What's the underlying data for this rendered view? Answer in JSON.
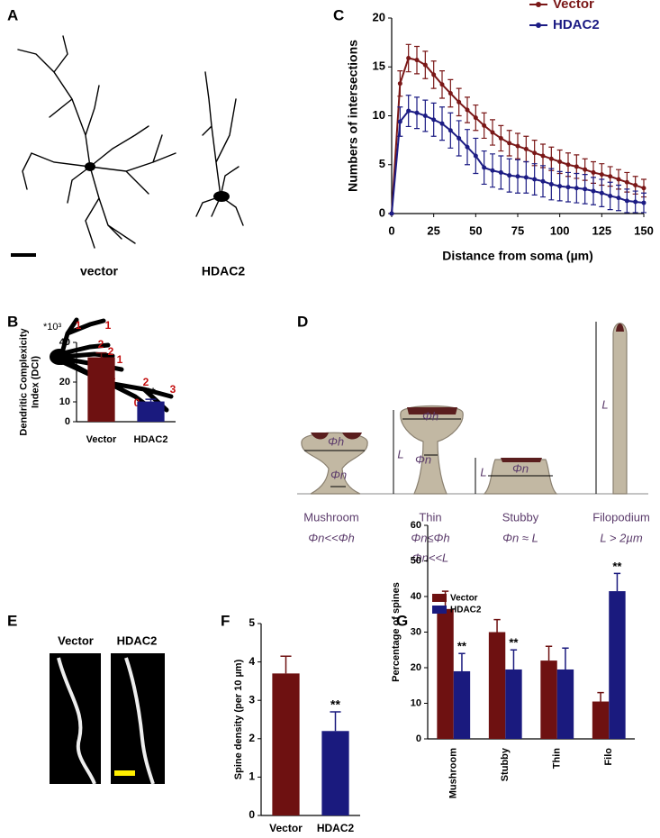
{
  "panel_labels": [
    "A",
    "B",
    "C",
    "D",
    "E",
    "F",
    "G"
  ],
  "panel_a": {
    "labels": [
      "vector",
      "HDAC2"
    ]
  },
  "panel_b_diagram": {
    "numbers": [
      "1",
      "1",
      "2",
      "2",
      "1",
      "1",
      "1",
      "2",
      "0",
      "3",
      "3"
    ]
  },
  "panel_d": {
    "spines": [
      {
        "name": "Mushroom",
        "formulas": [
          "Φn<<Φh"
        ],
        "marks": [
          "Φh",
          "Φn"
        ]
      },
      {
        "name": "Thin",
        "formulas": [
          "Φn≤Φh",
          "Φn<<L"
        ],
        "marks": [
          "Φh",
          "Φn",
          "L"
        ]
      },
      {
        "name": "Stubby",
        "formulas": [
          "Φn ≈ L"
        ],
        "marks": [
          "Φn",
          "L"
        ]
      },
      {
        "name": "Filopodium",
        "formulas": [
          "L > 2µm"
        ],
        "marks": [
          "L"
        ]
      }
    ]
  },
  "panel_e": {
    "labels": [
      "Vector",
      "HDAC2"
    ]
  },
  "chart_data": [
    {
      "type": "line",
      "xlabel": "Distance from soma (µm)",
      "ylabel": [
        "Numbers of intersections"
      ],
      "x": [
        0,
        5,
        10,
        15,
        20,
        25,
        30,
        35,
        40,
        45,
        50,
        55,
        60,
        65,
        70,
        75,
        80,
        85,
        90,
        95,
        100,
        105,
        110,
        115,
        120,
        125,
        130,
        135,
        140,
        145,
        150
      ],
      "xlim": [
        0,
        150
      ],
      "xticks": [
        0,
        25,
        50,
        75,
        100,
        125,
        150
      ],
      "ylim": [
        0,
        20
      ],
      "yticks": [
        0,
        5,
        10,
        15,
        20
      ],
      "legend": "top-right",
      "series": [
        {
          "name": "Vector",
          "color": "#7a1717",
          "values": [
            0,
            13.3,
            15.9,
            15.7,
            15.2,
            14.2,
            13.2,
            12.3,
            11.4,
            10.6,
            9.8,
            9.0,
            8.3,
            7.7,
            7.2,
            6.9,
            6.6,
            6.2,
            5.9,
            5.6,
            5.3,
            5.0,
            4.8,
            4.5,
            4.2,
            4.0,
            3.8,
            3.5,
            3.2,
            2.9,
            2.6
          ],
          "errors": [
            0,
            1.3,
            1.4,
            1.4,
            1.4,
            1.4,
            1.4,
            1.4,
            1.4,
            1.3,
            1.3,
            1.3,
            1.3,
            1.3,
            1.3,
            1.3,
            1.3,
            1.3,
            1.2,
            1.2,
            1.2,
            1.2,
            1.2,
            1.1,
            1.1,
            1.1,
            1.0,
            1.0,
            1.0,
            0.9,
            0.9
          ]
        },
        {
          "name": "HDAC2",
          "color": "#1c1c84",
          "values": [
            0,
            9.4,
            10.5,
            10.3,
            10.0,
            9.6,
            9.2,
            8.5,
            7.7,
            6.8,
            5.9,
            4.7,
            4.4,
            4.2,
            3.9,
            3.8,
            3.7,
            3.5,
            3.3,
            3.0,
            2.8,
            2.7,
            2.6,
            2.5,
            2.3,
            2.1,
            1.8,
            1.6,
            1.3,
            1.2,
            1.1
          ],
          "errors": [
            0,
            1.5,
            1.6,
            1.6,
            1.6,
            1.7,
            1.7,
            1.8,
            1.8,
            1.8,
            1.8,
            1.7,
            1.7,
            1.7,
            1.7,
            1.7,
            1.6,
            1.6,
            1.6,
            1.6,
            1.5,
            1.5,
            1.5,
            1.5,
            1.4,
            1.4,
            1.4,
            1.3,
            1.2,
            1.1,
            1.0
          ]
        }
      ]
    },
    {
      "type": "bar",
      "ylabel": [
        "Dendritic Complexicity",
        "Index (DCI)"
      ],
      "y_multiplier": "*10³",
      "categories": [
        "Vector",
        "HDAC2"
      ],
      "values": [
        32.5,
        10.2
      ],
      "errors": [
        2.2,
        1.1
      ],
      "colors": [
        "#6e1111",
        "#1a1a7e"
      ],
      "ylim": [
        0,
        40
      ],
      "yticks": [
        0,
        10,
        20,
        30,
        40
      ],
      "annotations": [
        {
          "text": "**",
          "x": "HDAC2"
        }
      ]
    },
    {
      "type": "bar",
      "ylabel": [
        "Spine density (per 10 µm)"
      ],
      "categories": [
        "Vector",
        "HDAC2"
      ],
      "values": [
        3.7,
        2.2
      ],
      "errors": [
        0.45,
        0.5
      ],
      "colors": [
        "#6e1111",
        "#1a1a7e"
      ],
      "ylim": [
        0,
        5
      ],
      "yticks": [
        0,
        1,
        2,
        3,
        4,
        5
      ],
      "annotations": [
        {
          "text": "**",
          "x": "HDAC2"
        }
      ]
    },
    {
      "type": "bar",
      "ylabel": [
        "Percentage of spines"
      ],
      "legend": "top-left",
      "categories": [
        "Mushroom",
        "Stubby",
        "Thin",
        "Filo"
      ],
      "ylim": [
        0,
        60
      ],
      "yticks": [
        0,
        10,
        20,
        30,
        40,
        50,
        60
      ],
      "series": [
        {
          "name": "Vector",
          "color": "#6e1111",
          "values": [
            36.5,
            30,
            22,
            10.5
          ],
          "errors": [
            5,
            3.5,
            4,
            2.5
          ]
        },
        {
          "name": "HDAC2",
          "color": "#1a1a7e",
          "values": [
            19,
            19.5,
            19.5,
            41.5
          ],
          "errors": [
            5,
            5.5,
            6,
            5
          ]
        }
      ],
      "annotations": [
        {
          "text": "**",
          "x": "Mushroom",
          "series": "HDAC2"
        },
        {
          "text": "**",
          "x": "Stubby",
          "series": "HDAC2"
        },
        {
          "text": "**",
          "x": "Filo",
          "series": "HDAC2"
        }
      ]
    }
  ]
}
